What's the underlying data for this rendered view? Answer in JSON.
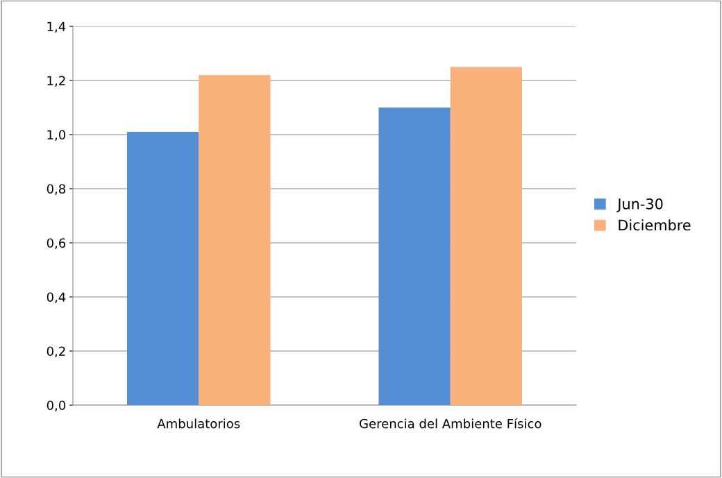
{
  "chart_data": {
    "type": "bar",
    "categories": [
      "Ambulatorios",
      "Gerencia del Ambiente Físico"
    ],
    "series": [
      {
        "name": "Jun-30",
        "color": "#558ed5",
        "values": [
          1.01,
          1.1
        ]
      },
      {
        "name": "Diciembre",
        "color": "#f9b07a",
        "values": [
          1.22,
          1.25
        ]
      }
    ],
    "ylim": [
      0,
      1.4
    ],
    "yticks": [
      {
        "value": 0,
        "label": "0,0"
      },
      {
        "value": 0.2,
        "label": "0,2"
      },
      {
        "value": 0.4,
        "label": "0,4"
      },
      {
        "value": 0.6,
        "label": "0,6"
      },
      {
        "value": 0.8,
        "label": "0,8"
      },
      {
        "value": 1.0,
        "label": "1,0"
      },
      {
        "value": 1.2,
        "label": "1,2"
      },
      {
        "value": 1.4,
        "label": "1,4"
      }
    ],
    "grid": "y",
    "legend": "right"
  }
}
